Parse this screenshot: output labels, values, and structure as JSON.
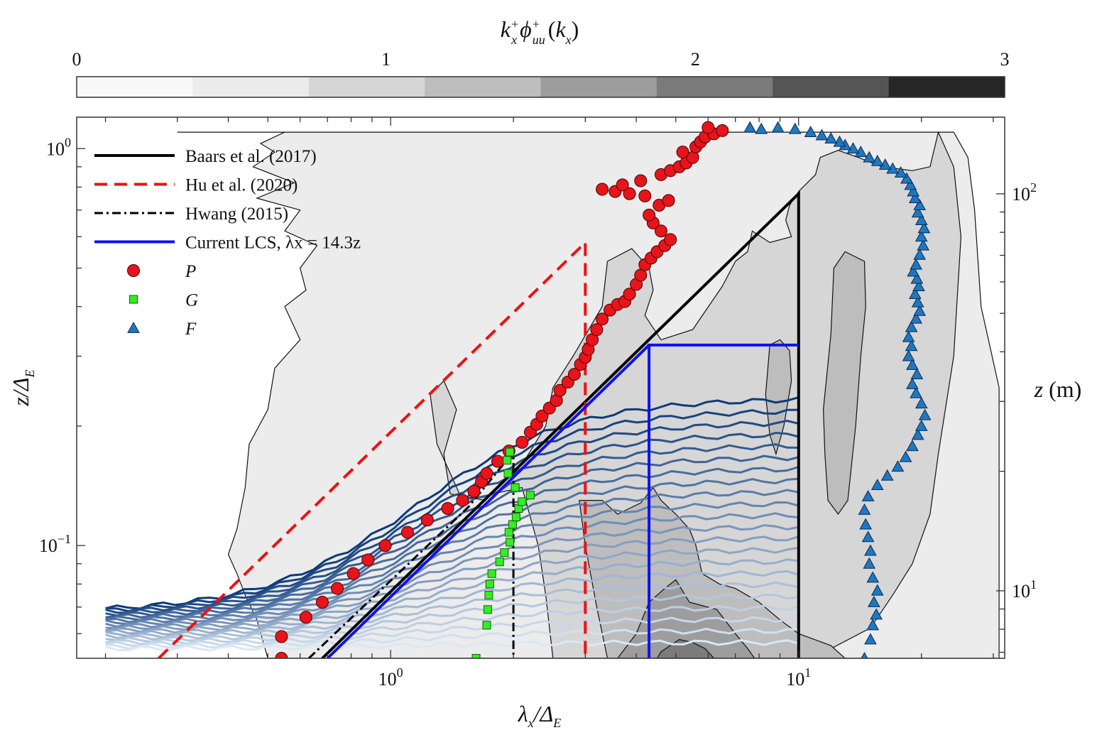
{
  "colorbar": {
    "label": "k_x^+ φ_uu^+ (k_x)",
    "ticks": [
      "0",
      "1",
      "2",
      "3"
    ],
    "range": [
      0,
      3
    ],
    "levels": 8,
    "colors": [
      "#f8f8f8",
      "#ececec",
      "#d6d6d6",
      "#bdbdbd",
      "#9d9d9d",
      "#7b7b7b",
      "#555555",
      "#262626"
    ]
  },
  "axes": {
    "xlabel": "λ_x/Δ_E",
    "ylabel": "z/Δ_E",
    "y2label": "z (m)",
    "xscale": "log",
    "yscale": "log",
    "xlim": [
      0.17,
      32
    ],
    "ylim": [
      0.052,
      1.2
    ],
    "xticks": [
      {
        "value": 1,
        "base": "10",
        "exp": "0"
      },
      {
        "value": 10,
        "base": "10",
        "exp": "1"
      }
    ],
    "yticks": [
      {
        "value": 0.1,
        "base": "10",
        "exp": "−1"
      },
      {
        "value": 1,
        "base": "10",
        "exp": "0"
      }
    ],
    "y2ticks": [
      {
        "value": 10,
        "base": "10",
        "exp": "1"
      },
      {
        "value": 100,
        "base": "10",
        "exp": "2"
      }
    ]
  },
  "legend": {
    "placement": "top-left",
    "entries": [
      {
        "key": "baars",
        "text": "Baars et al. (2017)",
        "color": "#000000",
        "style": "solid"
      },
      {
        "key": "hu",
        "text": "Hu et al. (2020)",
        "color": "#ee1111",
        "style": "dashed"
      },
      {
        "key": "hwang",
        "text": "Hwang (2015)",
        "color": "#000000",
        "style": "dashdot"
      },
      {
        "key": "lcs",
        "text": "Current LCS, λx = 14.3z",
        "color": "#1010ee",
        "style": "solid"
      },
      {
        "key": "P",
        "text": "P",
        "color": "#e8141b",
        "marker": "circle"
      },
      {
        "key": "G",
        "text": "G",
        "color": "#33ee22",
        "marker": "square"
      },
      {
        "key": "F",
        "text": "F",
        "color": "#1f77c0",
        "marker": "triangle"
      }
    ]
  },
  "chart_data": {
    "type": "scatter",
    "lines": {
      "baars": {
        "color": "#000000",
        "points": [
          [
            0.68,
            0.052
          ],
          [
            10.0,
            0.77
          ],
          [
            10.0,
            0.052
          ]
        ]
      },
      "hu": {
        "color": "#ee1111",
        "points": [
          [
            0.27,
            0.052
          ],
          [
            3.0,
            0.58
          ],
          [
            3.0,
            0.052
          ]
        ]
      },
      "hwang": {
        "color": "#000000",
        "points": [
          [
            0.63,
            0.052
          ],
          [
            1.55,
            0.125
          ],
          [
            2.0,
            0.172
          ],
          [
            2.0,
            0.052
          ]
        ]
      },
      "lcs": {
        "color": "#1010ee",
        "points": [
          [
            0.7,
            0.052
          ],
          [
            4.3,
            0.32
          ],
          [
            10.0,
            0.32
          ],
          [
            4.3,
            0.32
          ],
          [
            4.3,
            0.052
          ]
        ]
      }
    },
    "series": [
      {
        "name": "P",
        "color": "#e8141b",
        "marker": "circle",
        "points": [
          [
            0.54,
            0.052
          ],
          [
            0.54,
            0.059
          ],
          [
            0.62,
            0.066
          ],
          [
            0.68,
            0.072
          ],
          [
            0.74,
            0.078
          ],
          [
            0.81,
            0.085
          ],
          [
            0.88,
            0.092
          ],
          [
            0.97,
            0.1
          ],
          [
            1.1,
            0.108
          ],
          [
            1.23,
            0.116
          ],
          [
            1.38,
            0.124
          ],
          [
            1.5,
            0.13
          ],
          [
            1.6,
            0.137
          ],
          [
            1.67,
            0.145
          ],
          [
            1.72,
            0.152
          ],
          [
            1.83,
            0.163
          ],
          [
            1.95,
            0.173
          ],
          [
            2.1,
            0.182
          ],
          [
            2.2,
            0.193
          ],
          [
            2.28,
            0.202
          ],
          [
            2.35,
            0.212
          ],
          [
            2.45,
            0.222
          ],
          [
            2.55,
            0.232
          ],
          [
            2.6,
            0.246
          ],
          [
            2.72,
            0.258
          ],
          [
            2.82,
            0.27
          ],
          [
            2.92,
            0.286
          ],
          [
            3.0,
            0.298
          ],
          [
            3.05,
            0.312
          ],
          [
            3.12,
            0.33
          ],
          [
            3.2,
            0.35
          ],
          [
            3.3,
            0.372
          ],
          [
            3.45,
            0.392
          ],
          [
            3.6,
            0.405
          ],
          [
            3.75,
            0.412
          ],
          [
            3.85,
            0.43
          ],
          [
            4.0,
            0.455
          ],
          [
            4.1,
            0.48
          ],
          [
            4.2,
            0.51
          ],
          [
            4.35,
            0.53
          ],
          [
            4.5,
            0.55
          ],
          [
            4.7,
            0.57
          ],
          [
            4.85,
            0.59
          ],
          [
            4.6,
            0.62
          ],
          [
            4.4,
            0.65
          ],
          [
            4.3,
            0.68
          ],
          [
            4.55,
            0.72
          ],
          [
            4.8,
            0.74
          ],
          [
            4.2,
            0.76
          ],
          [
            3.85,
            0.77
          ],
          [
            3.55,
            0.78
          ],
          [
            3.3,
            0.79
          ],
          [
            3.7,
            0.81
          ],
          [
            4.1,
            0.83
          ],
          [
            4.6,
            0.86
          ],
          [
            4.85,
            0.88
          ],
          [
            5.1,
            0.9
          ],
          [
            5.3,
            0.92
          ],
          [
            5.5,
            0.95
          ],
          [
            5.2,
            0.98
          ],
          [
            5.6,
            1.01
          ],
          [
            5.75,
            1.04
          ],
          [
            5.9,
            1.07
          ],
          [
            6.2,
            1.09
          ],
          [
            6.5,
            1.11
          ],
          [
            6.0,
            1.13
          ]
        ]
      },
      {
        "name": "G",
        "color": "#33ee22",
        "marker": "square",
        "points": [
          [
            1.62,
            0.052
          ],
          [
            1.72,
            0.063
          ],
          [
            1.73,
            0.069
          ],
          [
            1.74,
            0.075
          ],
          [
            1.75,
            0.08
          ],
          [
            1.77,
            0.085
          ],
          [
            1.85,
            0.091
          ],
          [
            1.9,
            0.096
          ],
          [
            1.96,
            0.102
          ],
          [
            1.95,
            0.108
          ],
          [
            1.99,
            0.113
          ],
          [
            2.03,
            0.118
          ],
          [
            2.06,
            0.124
          ],
          [
            2.1,
            0.129
          ],
          [
            2.2,
            0.134
          ],
          [
            2.02,
            0.14
          ],
          [
            1.94,
            0.152
          ],
          [
            1.93,
            0.164
          ],
          [
            1.96,
            0.172
          ]
        ]
      },
      {
        "name": "F",
        "color": "#1f77c0",
        "marker": "triangle",
        "points": [
          [
            14.5,
            0.052
          ],
          [
            15.0,
            0.058
          ],
          [
            15.2,
            0.063
          ],
          [
            15.5,
            0.067
          ],
          [
            15.3,
            0.072
          ],
          [
            15.6,
            0.077
          ],
          [
            15.2,
            0.083
          ],
          [
            14.9,
            0.09
          ],
          [
            15.0,
            0.097
          ],
          [
            14.8,
            0.105
          ],
          [
            14.6,
            0.113
          ],
          [
            14.5,
            0.123
          ],
          [
            14.8,
            0.133
          ],
          [
            15.6,
            0.142
          ],
          [
            16.5,
            0.15
          ],
          [
            17.5,
            0.158
          ],
          [
            18.3,
            0.167
          ],
          [
            19.0,
            0.178
          ],
          [
            19.6,
            0.19
          ],
          [
            20.0,
            0.2
          ],
          [
            20.4,
            0.213
          ],
          [
            20.0,
            0.228
          ],
          [
            19.4,
            0.242
          ],
          [
            19.0,
            0.255
          ],
          [
            19.5,
            0.27
          ],
          [
            19.0,
            0.285
          ],
          [
            18.6,
            0.3
          ],
          [
            18.9,
            0.318
          ],
          [
            18.6,
            0.335
          ],
          [
            18.9,
            0.355
          ],
          [
            19.4,
            0.373
          ],
          [
            19.8,
            0.39
          ],
          [
            19.6,
            0.41
          ],
          [
            19.3,
            0.43
          ],
          [
            19.7,
            0.45
          ],
          [
            19.5,
            0.47
          ],
          [
            19.1,
            0.49
          ],
          [
            19.4,
            0.51
          ],
          [
            19.8,
            0.54
          ],
          [
            20.2,
            0.57
          ],
          [
            20.0,
            0.6
          ],
          [
            20.3,
            0.63
          ],
          [
            20.0,
            0.66
          ],
          [
            19.6,
            0.69
          ],
          [
            19.8,
            0.72
          ],
          [
            19.3,
            0.75
          ],
          [
            19.1,
            0.78
          ],
          [
            18.8,
            0.81
          ],
          [
            18.4,
            0.84
          ],
          [
            17.8,
            0.87
          ],
          [
            17.0,
            0.89
          ],
          [
            16.3,
            0.91
          ],
          [
            15.6,
            0.93
          ],
          [
            14.9,
            0.95
          ],
          [
            14.2,
            0.98
          ],
          [
            13.6,
            1.0
          ],
          [
            13.0,
            1.02
          ],
          [
            12.6,
            1.04
          ],
          [
            12.0,
            1.06
          ],
          [
            11.4,
            1.08
          ],
          [
            10.7,
            1.1
          ],
          [
            9.8,
            1.12
          ],
          [
            8.9,
            1.13
          ],
          [
            8.1,
            1.12
          ],
          [
            7.6,
            1.13
          ]
        ]
      }
    ],
    "lcs_profiles": {
      "count": 22,
      "color_top": "#0d3a7a",
      "color_bottom": "#dbe8f5",
      "z_start_range": [
        0.055,
        0.068
      ],
      "z_end_range": [
        0.057,
        0.235
      ],
      "x_range": [
        0.2,
        10.0
      ]
    }
  }
}
